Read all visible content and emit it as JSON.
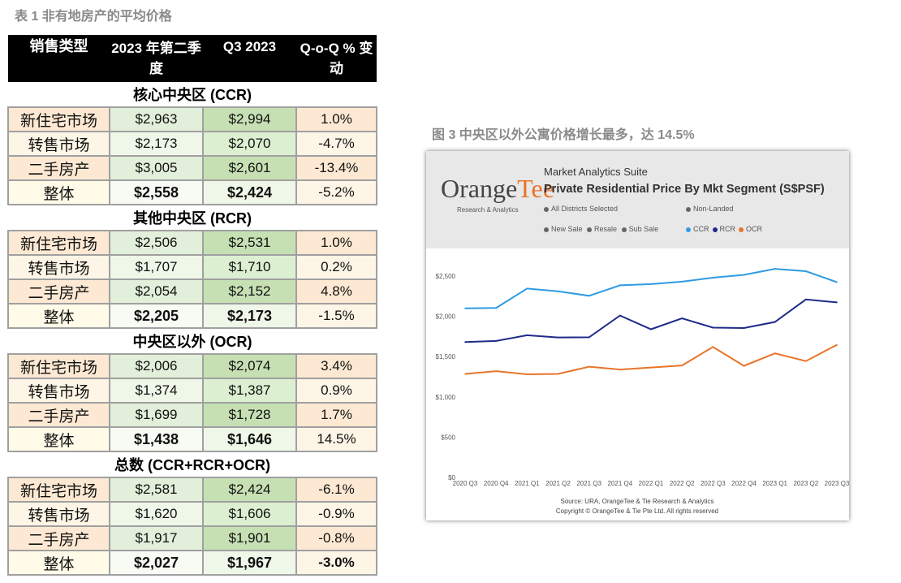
{
  "table": {
    "title": "表 1 非有地房产的平均价格",
    "headers": {
      "type": "销售类型",
      "q2": "2023 年第二季度",
      "q3": "Q3 2023",
      "qoq": "Q-o-Q % 变动"
    },
    "sections": [
      {
        "name": "核心中央区 (CCR)",
        "rows": [
          {
            "label": "新住宅市场",
            "q2": "$2,963",
            "q3": "$2,994",
            "qoq": "1.0%"
          },
          {
            "label": "转售市场",
            "q2": "$2,173",
            "q3": "$2,070",
            "qoq": "-4.7%"
          },
          {
            "label": "二手房产",
            "q2": "$3,005",
            "q3": "$2,601",
            "qoq": "-13.4%"
          },
          {
            "label": "整体",
            "q2": "$2,558",
            "q3": "$2,424",
            "qoq": "-5.2%"
          }
        ]
      },
      {
        "name": "其他中央区 (RCR)",
        "rows": [
          {
            "label": "新住宅市场",
            "q2": "$2,506",
            "q3": "$2,531",
            "qoq": "1.0%"
          },
          {
            "label": "转售市场",
            "q2": "$1,707",
            "q3": "$1,710",
            "qoq": "0.2%"
          },
          {
            "label": "二手房产",
            "q2": "$2,054",
            "q3": "$2,152",
            "qoq": "4.8%"
          },
          {
            "label": "整体",
            "q2": "$2,205",
            "q3": "$2,173",
            "qoq": "-1.5%"
          }
        ]
      },
      {
        "name": "中央区以外 (OCR)",
        "rows": [
          {
            "label": "新住宅市场",
            "q2": "$2,006",
            "q3": "$2,074",
            "qoq": "3.4%"
          },
          {
            "label": "转售市场",
            "q2": "$1,374",
            "q3": "$1,387",
            "qoq": "0.9%"
          },
          {
            "label": "二手房产",
            "q2": "$1,699",
            "q3": "$1,728",
            "qoq": "1.7%"
          },
          {
            "label": "整体",
            "q2": "$1,438",
            "q3": "$1,646",
            "qoq": "14.5%"
          }
        ]
      },
      {
        "name": "总数 (CCR+RCR+OCR)",
        "rows": [
          {
            "label": "新住宅市场",
            "q2": "$2,581",
            "q3": "$2,424",
            "qoq": "-6.1%"
          },
          {
            "label": "转售市场",
            "q2": "$1,620",
            "q3": "$1,606",
            "qoq": "-0.9%"
          },
          {
            "label": "二手房产",
            "q2": "$1,917",
            "q3": "$1,901",
            "qoq": "-0.8%"
          },
          {
            "label": "整体",
            "q2": "$2,027",
            "q3": "$1,967",
            "qoq": "-3.0%"
          }
        ]
      }
    ]
  },
  "figure": {
    "caption": "图 3 中央区以外公寓价格增长最多，达 14.5%",
    "logo": {
      "orange": "Orange",
      "tee": "Tee",
      "sub": "Research & Analytics"
    },
    "suite_label": "Market Analytics Suite",
    "filters": {
      "districts": "All Districts Selected",
      "landed": "Non-Landed",
      "sale_types": [
        "New Sale",
        "Resale",
        "Sub Sale"
      ]
    },
    "source": "Source: URA, OrangeTee & Tie Research & Analytics",
    "copyright": "Copyright © OrangeTee & Tie Pte Ltd. All rights reserved"
  },
  "colors": {
    "orange_header_q2": "#fde3cc",
    "orange_cell": "#fce4d0",
    "green_q2": "#e2efda",
    "green_q3": "#c6e0b4",
    "cat_orange": "#fde9d3",
    "cat_light": "#fdf5e6",
    "CCR": "#2f9be3",
    "RCR": "#1f2a8a",
    "OCR": "#e8742a"
  },
  "chart_data": {
    "type": "line",
    "title": "Private Residential Price By Mkt Segment (S$PSF)",
    "x": [
      "2020 Q3",
      "2020 Q4",
      "2021 Q1",
      "2021 Q2",
      "2021 Q3",
      "2021 Q4",
      "2022 Q1",
      "2022 Q2",
      "2022 Q3",
      "2022 Q4",
      "2023 Q1",
      "2023 Q2",
      "2023 Q3"
    ],
    "y_ticks": [
      "$0",
      "$500",
      "$1,000",
      "$1,500",
      "$2,000",
      "$2,500"
    ],
    "ylim": [
      0,
      2500
    ],
    "series": [
      {
        "name": "CCR",
        "values": [
          2100,
          2105,
          2345,
          2310,
          2255,
          2385,
          2400,
          2430,
          2480,
          2515,
          2590,
          2560,
          2424
        ]
      },
      {
        "name": "RCR",
        "values": [
          1680,
          1695,
          1765,
          1738,
          1740,
          2010,
          1840,
          1975,
          1860,
          1855,
          1930,
          2210,
          2173
        ]
      },
      {
        "name": "OCR",
        "values": [
          1285,
          1320,
          1280,
          1285,
          1375,
          1340,
          1365,
          1390,
          1620,
          1385,
          1540,
          1445,
          1646
        ]
      }
    ],
    "legend_placement": "top-right",
    "grid": false
  }
}
